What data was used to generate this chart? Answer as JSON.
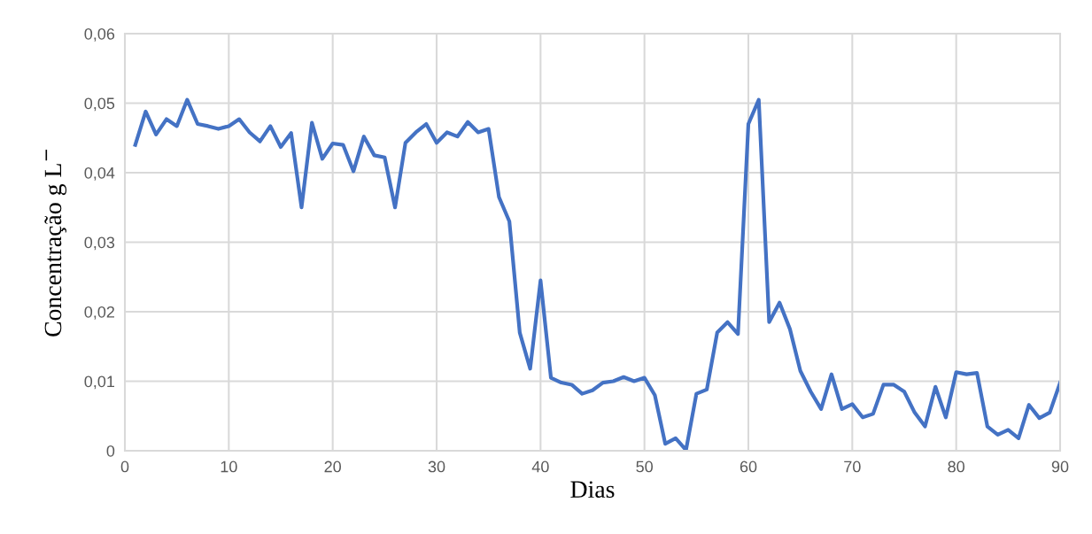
{
  "chart_data": {
    "type": "line",
    "xlabel": "Dias",
    "ylabel": "Concentração g L$^{−}$",
    "x": [
      1,
      2,
      3,
      4,
      5,
      6,
      7,
      8,
      9,
      10,
      11,
      12,
      13,
      14,
      15,
      16,
      17,
      18,
      19,
      20,
      21,
      22,
      23,
      24,
      25,
      26,
      27,
      28,
      29,
      30,
      31,
      32,
      33,
      34,
      35,
      36,
      37,
      38,
      39,
      40,
      41,
      42,
      43,
      44,
      45,
      46,
      47,
      48,
      49,
      50,
      51,
      52,
      53,
      54,
      55,
      56,
      57,
      58,
      59,
      60,
      61,
      62,
      63,
      64,
      65,
      66,
      67,
      68,
      69,
      70,
      71,
      72,
      73,
      74,
      75,
      76,
      77,
      78,
      79,
      80,
      81,
      82,
      83,
      84,
      85,
      86,
      87,
      88,
      89,
      90
    ],
    "series": [
      {
        "color": "#4472c4",
        "values": [
          0.044,
          0.0488,
          0.0455,
          0.0477,
          0.0467,
          0.0505,
          0.047,
          0.0467,
          0.0463,
          0.0467,
          0.0477,
          0.0458,
          0.0445,
          0.0467,
          0.0437,
          0.0457,
          0.035,
          0.0472,
          0.042,
          0.0442,
          0.044,
          0.0402,
          0.0452,
          0.0425,
          0.0422,
          0.035,
          0.0443,
          0.0458,
          0.047,
          0.0443,
          0.0458,
          0.0452,
          0.0473,
          0.0458,
          0.0463,
          0.0365,
          0.033,
          0.017,
          0.0118,
          0.0245,
          0.0105,
          0.0098,
          0.0095,
          0.0082,
          0.0087,
          0.0098,
          0.01,
          0.0106,
          0.01,
          0.0105,
          0.008,
          0.001,
          0.0018,
          0.0001,
          0.0082,
          0.0088,
          0.017,
          0.0185,
          0.0168,
          0.047,
          0.0505,
          0.0185,
          0.0213,
          0.0175,
          0.0115,
          0.0085,
          0.006,
          0.011,
          0.006,
          0.0067,
          0.0048,
          0.0053,
          0.0095,
          0.0095,
          0.0085,
          0.0055,
          0.0035,
          0.0092,
          0.0048,
          0.0113,
          0.011,
          0.0112,
          0.0035,
          0.0023,
          0.003,
          0.0018,
          0.0066,
          0.0047,
          0.0055,
          0.0098
        ]
      }
    ],
    "xlim": [
      0,
      90
    ],
    "xticks": [
      0,
      10,
      20,
      30,
      40,
      50,
      60,
      70,
      80,
      90
    ],
    "ylim": [
      0,
      0.06
    ],
    "yticks": [
      {
        "value": 0,
        "label": "0"
      },
      {
        "value": 0.01,
        "label": "0,01"
      },
      {
        "value": 0.02,
        "label": "0,02"
      },
      {
        "value": 0.03,
        "label": "0,03"
      },
      {
        "value": 0.04,
        "label": "0,04"
      },
      {
        "value": 0.05,
        "label": "0,05"
      },
      {
        "value": 0.06,
        "label": "0,06"
      }
    ],
    "grid": true,
    "line_style": "solid",
    "marker": "none"
  }
}
